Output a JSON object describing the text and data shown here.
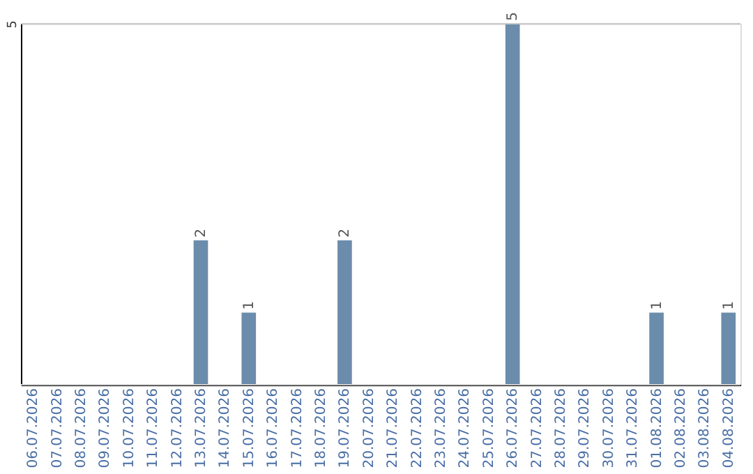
{
  "chart_data": {
    "type": "bar",
    "categories": [
      "06.07.2026",
      "07.07.2026",
      "08.07.2026",
      "09.07.2026",
      "10.07.2026",
      "11.07.2026",
      "12.07.2026",
      "13.07.2026",
      "14.07.2026",
      "15.07.2026",
      "16.07.2026",
      "17.07.2026",
      "18.07.2026",
      "19.07.2026",
      "20.07.2026",
      "21.07.2026",
      "22.07.2026",
      "23.07.2026",
      "24.07.2026",
      "25.07.2026",
      "26.07.2026",
      "27.07.2026",
      "28.07.2026",
      "29.07.2026",
      "30.07.2026",
      "31.07.2026",
      "01.08.2026",
      "02.08.2026",
      "03.08.2026",
      "04.08.2026"
    ],
    "values": [
      0,
      0,
      0,
      0,
      0,
      0,
      0,
      2,
      0,
      1,
      0,
      0,
      0,
      2,
      0,
      0,
      0,
      0,
      0,
      0,
      5,
      0,
      0,
      0,
      0,
      0,
      1,
      0,
      0,
      1
    ],
    "value_labels": [
      null,
      null,
      null,
      null,
      null,
      null,
      null,
      "2",
      null,
      "1",
      null,
      null,
      null,
      "2",
      null,
      null,
      null,
      null,
      null,
      null,
      "5",
      null,
      null,
      null,
      null,
      null,
      "1",
      null,
      null,
      "1"
    ],
    "color": "#6b8cab",
    "ylim": [
      0,
      5
    ],
    "yticks": [
      {
        "value": 0,
        "label": null
      },
      5
    ],
    "grid": "y"
  }
}
